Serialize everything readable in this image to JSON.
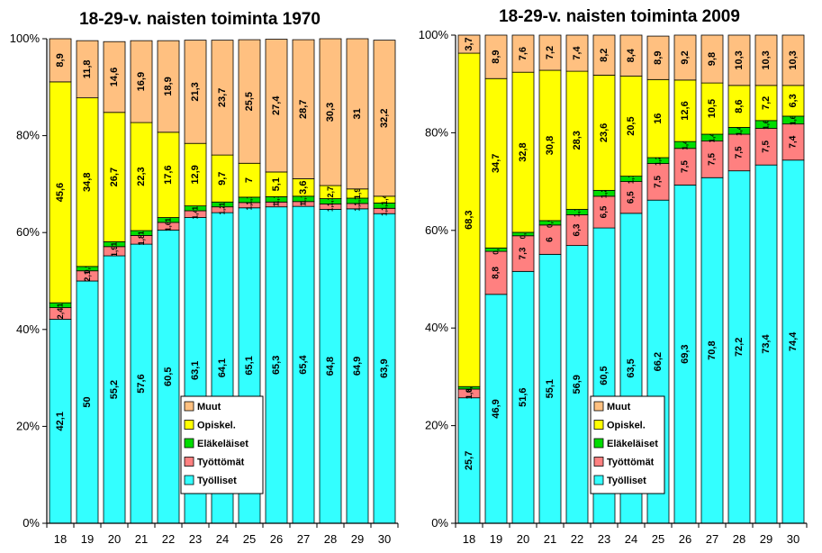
{
  "colors": {
    "Työlliset": "#33ffff",
    "Työttömät": "#ff8080",
    "Eläkeläiset": "#00dd00",
    "Opiskel.": "#ffff00",
    "Muut": "#ffc080"
  },
  "chart_data": [
    {
      "type": "bar",
      "stacked": true,
      "percent": true,
      "title": "18-29-v. naisten toiminta 1970",
      "categories": [
        "18",
        "19",
        "20",
        "21",
        "22",
        "23",
        "24",
        "25",
        "26",
        "27",
        "28",
        "29",
        "30"
      ],
      "ylim": [
        0,
        100
      ],
      "y_ticks": [
        "0%",
        "20%",
        "40%",
        "60%",
        "80%",
        "100%"
      ],
      "legend": [
        "Muut",
        "Opiskel.",
        "Eläkeläiset",
        "Työttömät",
        "Työlliset"
      ],
      "legend_position": "lower-middle",
      "series": [
        {
          "name": "Työlliset",
          "values": [
            42.1,
            50,
            55.2,
            57.6,
            60.5,
            63.1,
            64.1,
            65.1,
            65.3,
            65.4,
            64.8,
            64.9,
            63.9
          ],
          "labels": [
            "42,1",
            "50",
            "55,2",
            "57,6",
            "60,5",
            "63,1",
            "64,1",
            "65,1",
            "65,3",
            "65,4",
            "64,8",
            "64,9",
            "63,9"
          ]
        },
        {
          "name": "Työttömät",
          "values": [
            2.4,
            2.1,
            1.9,
            1.8,
            1.6,
            1.4,
            1.2,
            1.1,
            1.0,
            1.0,
            1.1,
            1.1,
            1.1
          ],
          "labels": [
            "2,4",
            "2,1",
            "1,9",
            "1,8",
            "1,6",
            "1,4",
            "1,2",
            "1,1",
            "1",
            "1",
            "1,1",
            "1,1",
            "1,1"
          ]
        },
        {
          "name": "Eläkeläiset",
          "values": [
            1.0,
            0.9,
            1.0,
            1.0,
            1.0,
            1.0,
            1.0,
            1.1,
            1.1,
            1.1,
            1.1,
            1.1,
            1.1
          ],
          "labels": [
            "1",
            "0,9",
            "1",
            "1",
            "1",
            "1",
            "1",
            "1,1",
            "1,1",
            "1,1",
            "1,1",
            "1,1",
            "1,1"
          ]
        },
        {
          "name": "Opiskel.",
          "values": [
            45.6,
            34.8,
            26.7,
            22.3,
            17.6,
            12.9,
            9.7,
            7,
            5.1,
            3.6,
            2.7,
            1.9,
            1.4
          ],
          "labels": [
            "45,6",
            "34,8",
            "26,7",
            "22,3",
            "17,6",
            "12,9",
            "9,7",
            "7",
            "5,1",
            "3,6",
            "2,7",
            "1,9",
            "1,4"
          ]
        },
        {
          "name": "Muut",
          "values": [
            8.9,
            11.8,
            14.6,
            16.9,
            18.9,
            21.3,
            23.7,
            25.5,
            27.4,
            28.7,
            30.3,
            31,
            32.2
          ],
          "labels": [
            "8,9",
            "11,8",
            "14,6",
            "16,9",
            "18,9",
            "21,3",
            "23,7",
            "25,5",
            "27,4",
            "28,7",
            "30,3",
            "31",
            "32,2"
          ]
        }
      ]
    },
    {
      "type": "bar",
      "stacked": true,
      "percent": true,
      "title": "18-29-v. naisten toiminta 2009",
      "categories": [
        "18",
        "19",
        "20",
        "21",
        "22",
        "23",
        "24",
        "25",
        "26",
        "27",
        "28",
        "29",
        "30"
      ],
      "ylim": [
        0,
        100
      ],
      "y_ticks": [
        "0%",
        "20%",
        "40%",
        "60%",
        "80%",
        "100%"
      ],
      "legend": [
        "Muut",
        "Opiskel.",
        "Eläkeläiset",
        "Työttömät",
        "Työlliset"
      ],
      "legend_position": "lower-middle",
      "series": [
        {
          "name": "Työlliset",
          "values": [
            25.7,
            46.9,
            51.6,
            55.1,
            56.9,
            60.5,
            63.5,
            66.2,
            69.3,
            70.8,
            72.2,
            73.4,
            74.4
          ],
          "labels": [
            "25,7",
            "46,9",
            "51,6",
            "55,1",
            "56,9",
            "60,5",
            "63,5",
            "66,2",
            "69,3",
            "70,8",
            "72,2",
            "73,4",
            "74,4"
          ]
        },
        {
          "name": "Työttömät",
          "values": [
            1.8,
            8.8,
            7.3,
            6,
            6.3,
            6.5,
            6.5,
            7.5,
            7.5,
            7.5,
            7.5,
            7.5,
            7.4
          ],
          "labels": [
            "1,8",
            "8,8",
            "7,3",
            "6",
            "6,3",
            "6,5",
            "6,5",
            "7,5",
            "7,5",
            "7,5",
            "7,5",
            "7,5",
            "7,4"
          ]
        },
        {
          "name": "Eläkeläiset",
          "values": [
            0.5,
            0.7,
            0.7,
            0.9,
            1.1,
            1.2,
            1.1,
            1.2,
            1.4,
            1.4,
            1.4,
            1.6,
            1.6
          ],
          "labels": [
            "0,5",
            "0,7",
            "0,7",
            "0,9",
            "1,1",
            "1,2",
            "1,1",
            "1,2",
            "1,4",
            "1,4",
            "1,4",
            "1,6",
            "1,6"
          ]
        },
        {
          "name": "Opiskel.",
          "values": [
            68.3,
            34.7,
            32.8,
            30.8,
            28.3,
            23.6,
            20.5,
            16,
            12.6,
            10.5,
            8.6,
            7.2,
            6.3
          ],
          "labels": [
            "68,3",
            "34,7",
            "32,8",
            "30,8",
            "28,3",
            "23,6",
            "20,5",
            "16",
            "12,6",
            "10,5",
            "8,6",
            "7,2",
            "6,3"
          ]
        },
        {
          "name": "Muut",
          "values": [
            3.7,
            8.9,
            7.6,
            7.2,
            7.4,
            8.2,
            8.4,
            8.9,
            9.2,
            9.8,
            10.3,
            10.3,
            10.3
          ],
          "labels": [
            "3,7",
            "8,9",
            "7,6",
            "7,2",
            "7,4",
            "8,2",
            "8,4",
            "8,9",
            "9,2",
            "9,8",
            "10,3",
            "10,3",
            "10,3"
          ]
        }
      ]
    }
  ]
}
